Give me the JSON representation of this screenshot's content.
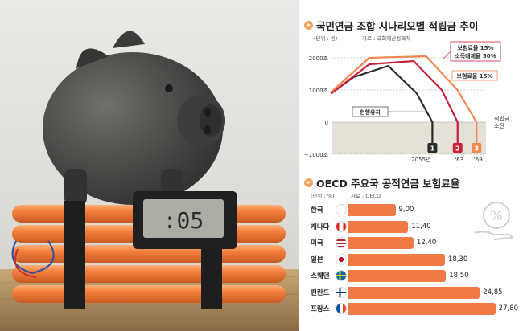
{
  "chart1": {
    "title": "국민연금 조합 시나리오별 적립금 추이",
    "unit": "(단위 : 원)",
    "source": "자료 : 국회예산정책처",
    "yticks": [
      "2000조",
      "1000조",
      "0",
      "−1000조"
    ],
    "xticks": [
      "2055년",
      "'63",
      "'69"
    ],
    "exhaust_label": "적립금\n소진",
    "colors": {
      "s1": "#2b2b2b",
      "s2": "#c8223b",
      "s3": "#f08850"
    },
    "chart_data": {
      "type": "line",
      "ylim": [
        -1000,
        2000
      ],
      "series": [
        {
          "name": "현행유지",
          "marker": "1",
          "x": [
            2023,
            2030,
            2041,
            2050,
            2055
          ],
          "y": [
            900,
            1400,
            1750,
            900,
            0
          ]
        },
        {
          "name": "보험료율 15% 소득대체율 50%",
          "marker": "2",
          "x": [
            2023,
            2035,
            2049,
            2058,
            2063
          ],
          "y": [
            900,
            1800,
            1900,
            1000,
            0
          ]
        },
        {
          "name": "보험료율 15%",
          "marker": "3",
          "x": [
            2023,
            2035,
            2053,
            2063,
            2069
          ],
          "y": [
            950,
            2000,
            2050,
            1000,
            0
          ]
        }
      ],
      "labels": {
        "s1": "현행유지",
        "s2_a": "보험료율 15%",
        "s2_b": "소득대체율 50%",
        "s3": "보험료율 15%"
      }
    }
  },
  "chart2": {
    "title": "OECD 주요국 공적연금 보험료율",
    "unit": "(단위 : %)",
    "source": "자료 : OECD",
    "bar_color": "#ef7a45",
    "chart_data": {
      "type": "bar",
      "categories": [
        "한국",
        "캐나다",
        "미국",
        "일본",
        "스웨덴",
        "핀란드",
        "프랑스"
      ],
      "values": [
        9.0,
        11.4,
        12.4,
        18.3,
        18.5,
        24.85,
        27.8
      ],
      "value_labels": [
        "9,00",
        "11,40",
        "12,40",
        "18,30",
        "18,50",
        "24,85",
        "27,80"
      ]
    }
  },
  "photo": {
    "timer_display": ":05"
  }
}
